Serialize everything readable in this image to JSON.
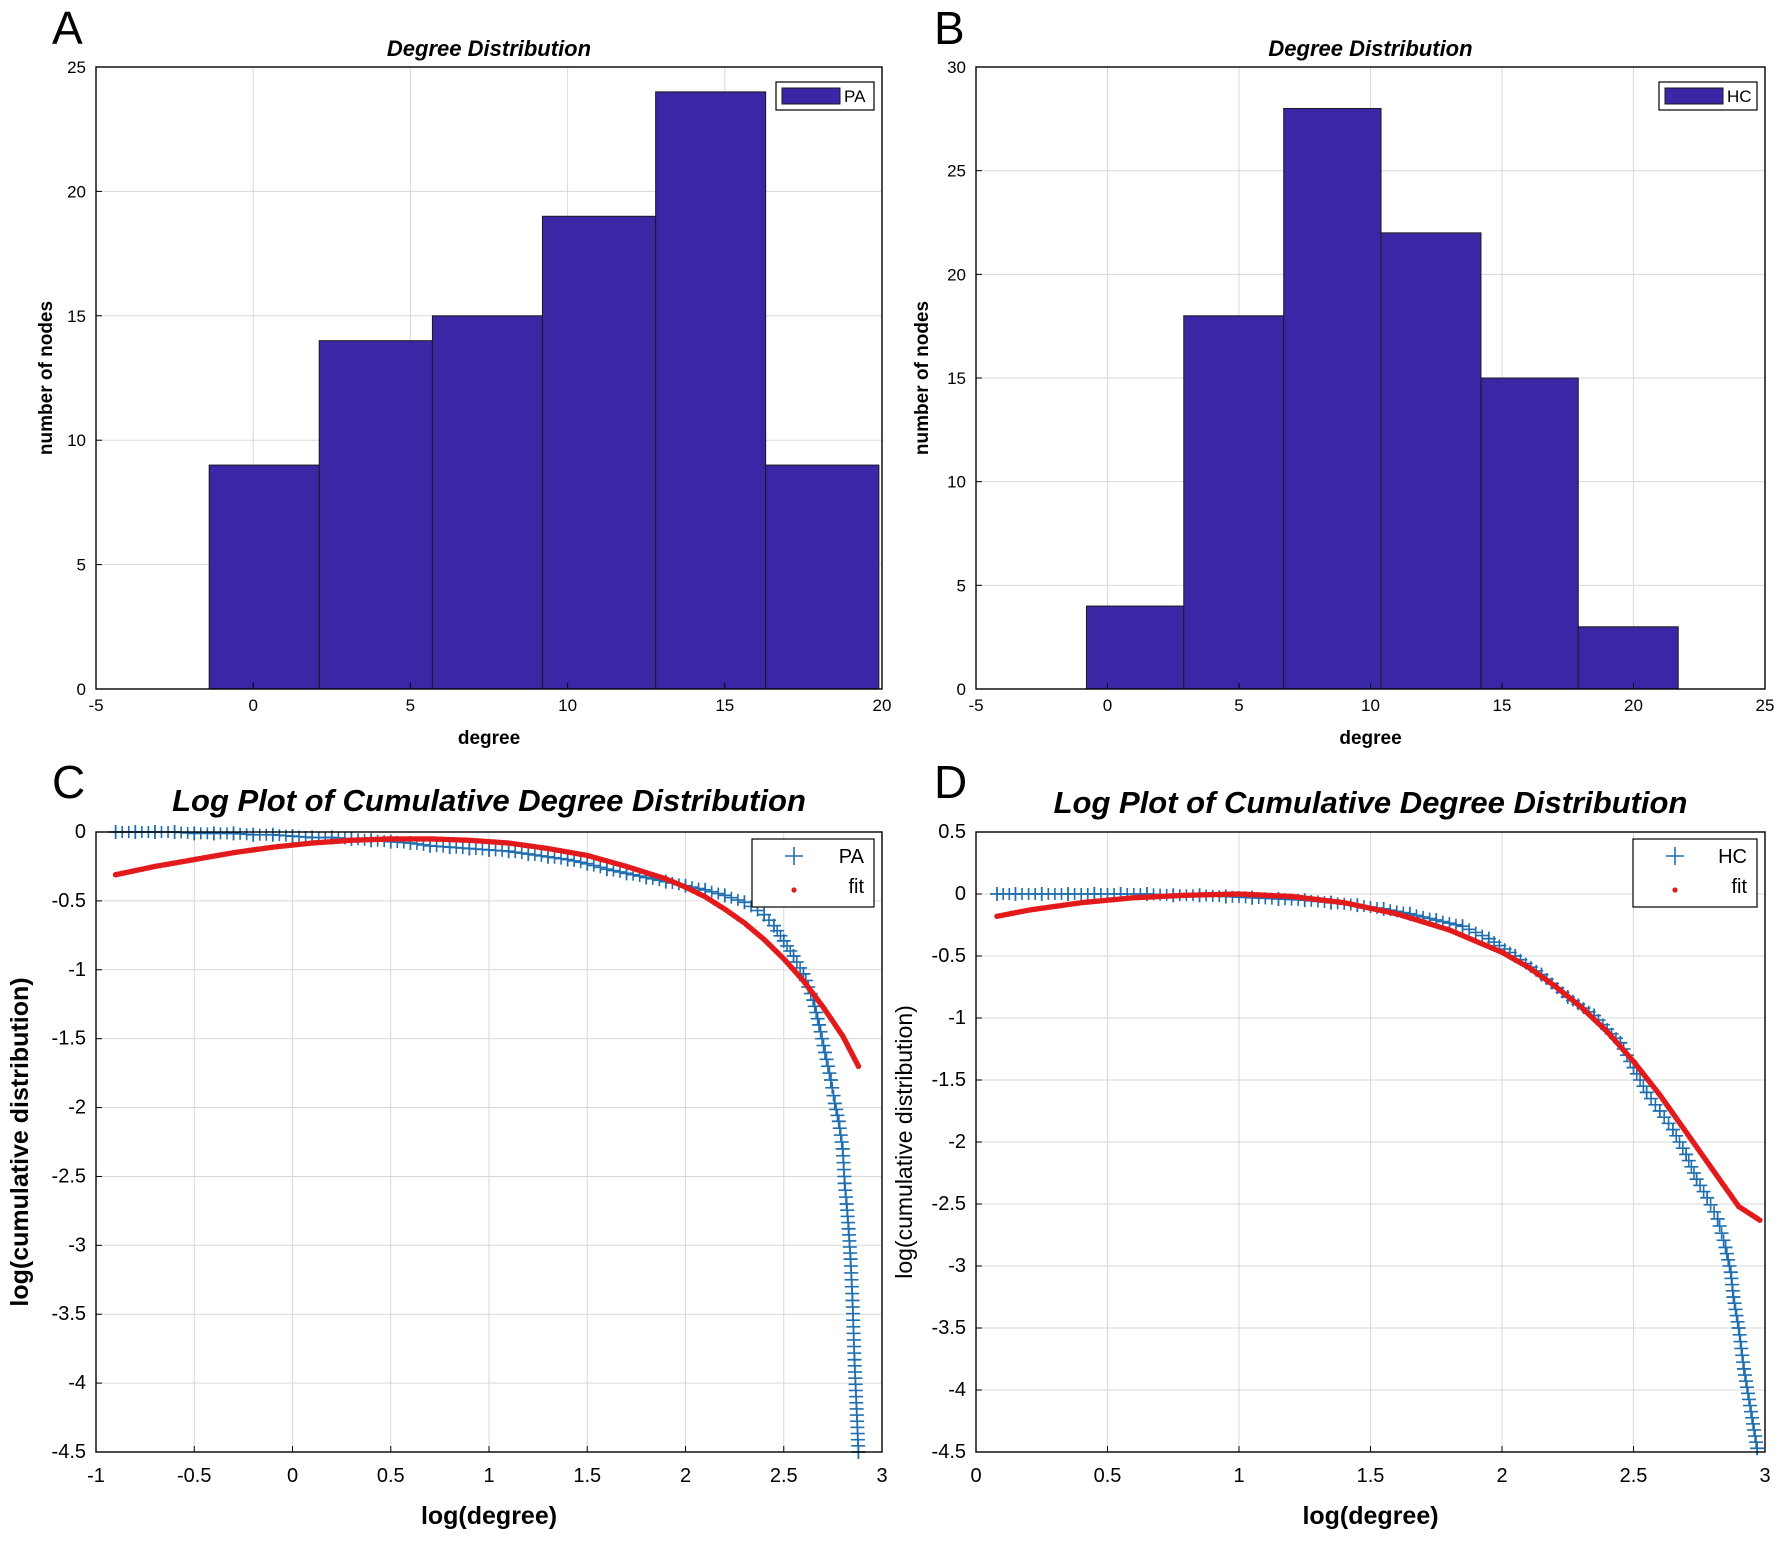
{
  "chart_data": [
    {
      "panel": "A",
      "type": "bar",
      "title": "Degree Distribution",
      "xlabel": "degree",
      "ylabel": "number of nodes",
      "xlim": [
        -5,
        20
      ],
      "ylim": [
        0,
        25
      ],
      "xticks": [
        -5,
        0,
        5,
        10,
        15,
        20
      ],
      "yticks": [
        0,
        5,
        10,
        15,
        20,
        25
      ],
      "grid": true,
      "legend": {
        "position": "top-right",
        "entries": [
          "PA"
        ]
      },
      "bar_color": "#3a27a5",
      "bins": [
        {
          "from": -1.4,
          "to": 2.1,
          "value": 9
        },
        {
          "from": 2.1,
          "to": 5.7,
          "value": 14
        },
        {
          "from": 5.7,
          "to": 9.2,
          "value": 15
        },
        {
          "from": 9.2,
          "to": 12.8,
          "value": 19
        },
        {
          "from": 12.8,
          "to": 16.3,
          "value": 24
        },
        {
          "from": 16.3,
          "to": 19.9,
          "value": 9
        }
      ]
    },
    {
      "panel": "B",
      "type": "bar",
      "title": "Degree Distribution",
      "xlabel": "degree",
      "ylabel": "number of nodes",
      "xlim": [
        -5,
        25
      ],
      "ylim": [
        0,
        30
      ],
      "xticks": [
        -5,
        0,
        5,
        10,
        15,
        20,
        25
      ],
      "yticks": [
        0,
        5,
        10,
        15,
        20,
        25,
        30
      ],
      "grid": true,
      "legend": {
        "position": "top-right",
        "entries": [
          "HC"
        ]
      },
      "bar_color": "#3a27a5",
      "bins": [
        {
          "from": -0.8,
          "to": 2.9,
          "value": 4
        },
        {
          "from": 2.9,
          "to": 6.7,
          "value": 18
        },
        {
          "from": 6.7,
          "to": 10.4,
          "value": 28
        },
        {
          "from": 10.4,
          "to": 14.2,
          "value": 22
        },
        {
          "from": 14.2,
          "to": 17.9,
          "value": 15
        },
        {
          "from": 17.9,
          "to": 21.7,
          "value": 3
        }
      ]
    },
    {
      "panel": "C",
      "type": "scatter",
      "title": "Log Plot of Cumulative Degree Distribution",
      "xlabel": "log(degree)",
      "ylabel": "log(cumulative distribution)",
      "xlim": [
        -1,
        3
      ],
      "ylim": [
        -4.5,
        0
      ],
      "xticks": [
        -1,
        -0.5,
        0,
        0.5,
        1,
        1.5,
        2,
        2.5,
        3
      ],
      "yticks": [
        0,
        -0.5,
        -1,
        -1.5,
        -2,
        -2.5,
        -3,
        -3.5,
        -4,
        -4.5
      ],
      "grid": true,
      "legend": {
        "position": "top-right",
        "entries": [
          "PA",
          "fit"
        ]
      },
      "series": [
        {
          "name": "PA",
          "marker": "+",
          "color": "#1f6fb0",
          "points": [
            [
              -0.9,
              0.0
            ],
            [
              -0.8,
              0.0
            ],
            [
              -0.7,
              0.0
            ],
            [
              -0.6,
              0.0
            ],
            [
              -0.5,
              -0.01
            ],
            [
              -0.4,
              -0.01
            ],
            [
              -0.3,
              -0.01
            ],
            [
              -0.2,
              -0.02
            ],
            [
              -0.1,
              -0.02
            ],
            [
              0.0,
              -0.03
            ],
            [
              0.1,
              -0.04
            ],
            [
              0.2,
              -0.04
            ],
            [
              0.3,
              -0.05
            ],
            [
              0.4,
              -0.06
            ],
            [
              0.5,
              -0.07
            ],
            [
              0.6,
              -0.08
            ],
            [
              0.7,
              -0.1
            ],
            [
              0.8,
              -0.11
            ],
            [
              0.9,
              -0.12
            ],
            [
              1.0,
              -0.13
            ],
            [
              1.1,
              -0.14
            ],
            [
              1.2,
              -0.16
            ],
            [
              1.3,
              -0.18
            ],
            [
              1.4,
              -0.2
            ],
            [
              1.5,
              -0.23
            ],
            [
              1.6,
              -0.27
            ],
            [
              1.7,
              -0.3
            ],
            [
              1.8,
              -0.33
            ],
            [
              1.9,
              -0.36
            ],
            [
              2.0,
              -0.39
            ],
            [
              2.1,
              -0.42
            ],
            [
              2.2,
              -0.46
            ],
            [
              2.3,
              -0.51
            ],
            [
              2.4,
              -0.6
            ],
            [
              2.45,
              -0.68
            ],
            [
              2.5,
              -0.79
            ],
            [
              2.55,
              -0.9
            ],
            [
              2.6,
              -1.03
            ],
            [
              2.65,
              -1.22
            ],
            [
              2.68,
              -1.4
            ],
            [
              2.71,
              -1.6
            ],
            [
              2.74,
              -1.8
            ],
            [
              2.76,
              -1.97
            ],
            [
              2.78,
              -2.1
            ],
            [
              2.8,
              -2.3
            ],
            [
              2.81,
              -2.55
            ],
            [
              2.82,
              -2.7
            ],
            [
              2.83,
              -2.88
            ],
            [
              2.84,
              -3.1
            ],
            [
              2.85,
              -3.4
            ],
            [
              2.86,
              -3.83
            ],
            [
              2.88,
              -4.5
            ]
          ]
        },
        {
          "name": "fit",
          "marker": ".",
          "color": "#e31a1c",
          "points": [
            [
              -0.9,
              -0.31
            ],
            [
              -0.7,
              -0.25
            ],
            [
              -0.5,
              -0.2
            ],
            [
              -0.3,
              -0.15
            ],
            [
              -0.1,
              -0.11
            ],
            [
              0.1,
              -0.08
            ],
            [
              0.3,
              -0.06
            ],
            [
              0.5,
              -0.05
            ],
            [
              0.7,
              -0.05
            ],
            [
              0.9,
              -0.06
            ],
            [
              1.1,
              -0.08
            ],
            [
              1.3,
              -0.12
            ],
            [
              1.5,
              -0.17
            ],
            [
              1.7,
              -0.25
            ],
            [
              1.9,
              -0.34
            ],
            [
              2.0,
              -0.4
            ],
            [
              2.1,
              -0.47
            ],
            [
              2.2,
              -0.56
            ],
            [
              2.3,
              -0.66
            ],
            [
              2.4,
              -0.78
            ],
            [
              2.5,
              -0.92
            ],
            [
              2.6,
              -1.08
            ],
            [
              2.7,
              -1.27
            ],
            [
              2.8,
              -1.48
            ],
            [
              2.88,
              -1.7
            ]
          ]
        }
      ]
    },
    {
      "panel": "D",
      "type": "scatter",
      "title": "Log Plot of Cumulative Degree Distribution",
      "xlabel": "log(degree)",
      "ylabel": "log(cumulative distribution)",
      "xlim": [
        0,
        3
      ],
      "ylim": [
        -4.5,
        0.5
      ],
      "xticks": [
        0,
        0.5,
        1,
        1.5,
        2,
        2.5,
        3
      ],
      "yticks": [
        0.5,
        0,
        -0.5,
        -1,
        -1.5,
        -2,
        -2.5,
        -3,
        -3.5,
        -4,
        -4.5
      ],
      "grid": true,
      "legend": {
        "position": "top-right",
        "entries": [
          "HC",
          "fit"
        ]
      },
      "series": [
        {
          "name": "HC",
          "marker": "+",
          "color": "#1f6fb0",
          "points": [
            [
              0.08,
              0.0
            ],
            [
              0.15,
              0.0
            ],
            [
              0.25,
              0.0
            ],
            [
              0.35,
              0.0
            ],
            [
              0.45,
              0.0
            ],
            [
              0.55,
              0.0
            ],
            [
              0.65,
              0.0
            ],
            [
              0.75,
              -0.01
            ],
            [
              0.85,
              -0.01
            ],
            [
              0.95,
              -0.02
            ],
            [
              1.05,
              -0.03
            ],
            [
              1.15,
              -0.04
            ],
            [
              1.25,
              -0.05
            ],
            [
              1.35,
              -0.07
            ],
            [
              1.45,
              -0.09
            ],
            [
              1.55,
              -0.12
            ],
            [
              1.65,
              -0.16
            ],
            [
              1.75,
              -0.21
            ],
            [
              1.85,
              -0.26
            ],
            [
              1.95,
              -0.36
            ],
            [
              2.05,
              -0.5
            ],
            [
              2.15,
              -0.65
            ],
            [
              2.25,
              -0.83
            ],
            [
              2.35,
              -0.98
            ],
            [
              2.45,
              -1.2
            ],
            [
              2.5,
              -1.4
            ],
            [
              2.55,
              -1.6
            ],
            [
              2.6,
              -1.75
            ],
            [
              2.65,
              -1.9
            ],
            [
              2.7,
              -2.1
            ],
            [
              2.74,
              -2.3
            ],
            [
              2.78,
              -2.45
            ],
            [
              2.82,
              -2.62
            ],
            [
              2.85,
              -2.85
            ],
            [
              2.87,
              -3.05
            ],
            [
              2.88,
              -3.25
            ],
            [
              2.9,
              -3.5
            ],
            [
              2.92,
              -3.83
            ],
            [
              2.97,
              -4.47
            ]
          ]
        },
        {
          "name": "fit",
          "marker": ".",
          "color": "#e31a1c",
          "points": [
            [
              0.08,
              -0.18
            ],
            [
              0.2,
              -0.13
            ],
            [
              0.4,
              -0.07
            ],
            [
              0.6,
              -0.03
            ],
            [
              0.8,
              -0.01
            ],
            [
              1.0,
              0.0
            ],
            [
              1.2,
              -0.02
            ],
            [
              1.4,
              -0.07
            ],
            [
              1.6,
              -0.16
            ],
            [
              1.8,
              -0.29
            ],
            [
              2.0,
              -0.47
            ],
            [
              2.1,
              -0.59
            ],
            [
              2.2,
              -0.74
            ],
            [
              2.3,
              -0.91
            ],
            [
              2.4,
              -1.11
            ],
            [
              2.5,
              -1.35
            ],
            [
              2.6,
              -1.62
            ],
            [
              2.7,
              -1.92
            ],
            [
              2.8,
              -2.22
            ],
            [
              2.9,
              -2.52
            ],
            [
              2.98,
              -2.63
            ]
          ]
        }
      ]
    }
  ],
  "panels": [
    {
      "letter": "A",
      "title": "Degree Distribution"
    },
    {
      "letter": "B",
      "title": "Degree Distribution"
    },
    {
      "letter": "C",
      "title": "Log Plot of Cumulative Degree Distribution"
    },
    {
      "letter": "D",
      "title": "Log Plot of Cumulative Degree Distribution"
    }
  ]
}
